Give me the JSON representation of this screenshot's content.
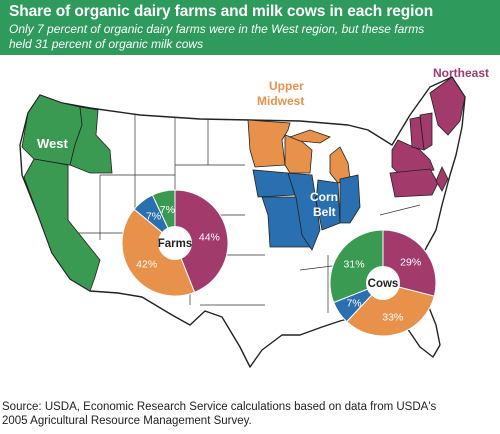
{
  "header": {
    "title": "Share of organic dairy farms and milk cows in each region",
    "subtitle_line1": "Only 7 percent of organic dairy farms were in the West region, but these farms",
    "subtitle_line2": "held 31 percent of organic milk cows"
  },
  "regions": {
    "west": "West",
    "upper_midwest_line1": "Upper",
    "upper_midwest_line2": "Midwest",
    "corn_belt_line1": "Corn",
    "corn_belt_line2": "Belt",
    "northeast": "Northeast"
  },
  "colors": {
    "west": "#3a9a52",
    "upper_midwest": "#e8914a",
    "corn_belt": "#2a6fb0",
    "northeast": "#a23a6c",
    "header_bg": "#2e9a5c"
  },
  "chart_data": [
    {
      "type": "pie",
      "title": "Farms",
      "categories": [
        "Northeast",
        "Upper Midwest",
        "Corn Belt",
        "West"
      ],
      "values": [
        44,
        42,
        7,
        7
      ],
      "labels": [
        "44%",
        "42%",
        "7%",
        "7%"
      ]
    },
    {
      "type": "pie",
      "title": "Cows",
      "categories": [
        "Northeast",
        "Upper Midwest",
        "Corn Belt",
        "West"
      ],
      "values": [
        29,
        33,
        7,
        31
      ],
      "labels": [
        "29%",
        "33%",
        "7%",
        "31%"
      ]
    }
  ],
  "source": {
    "line1": "Source: USDA, Economic Research Service calculations based on data from USDA's",
    "line2": "2005 Agricultural Resource Management Survey."
  }
}
